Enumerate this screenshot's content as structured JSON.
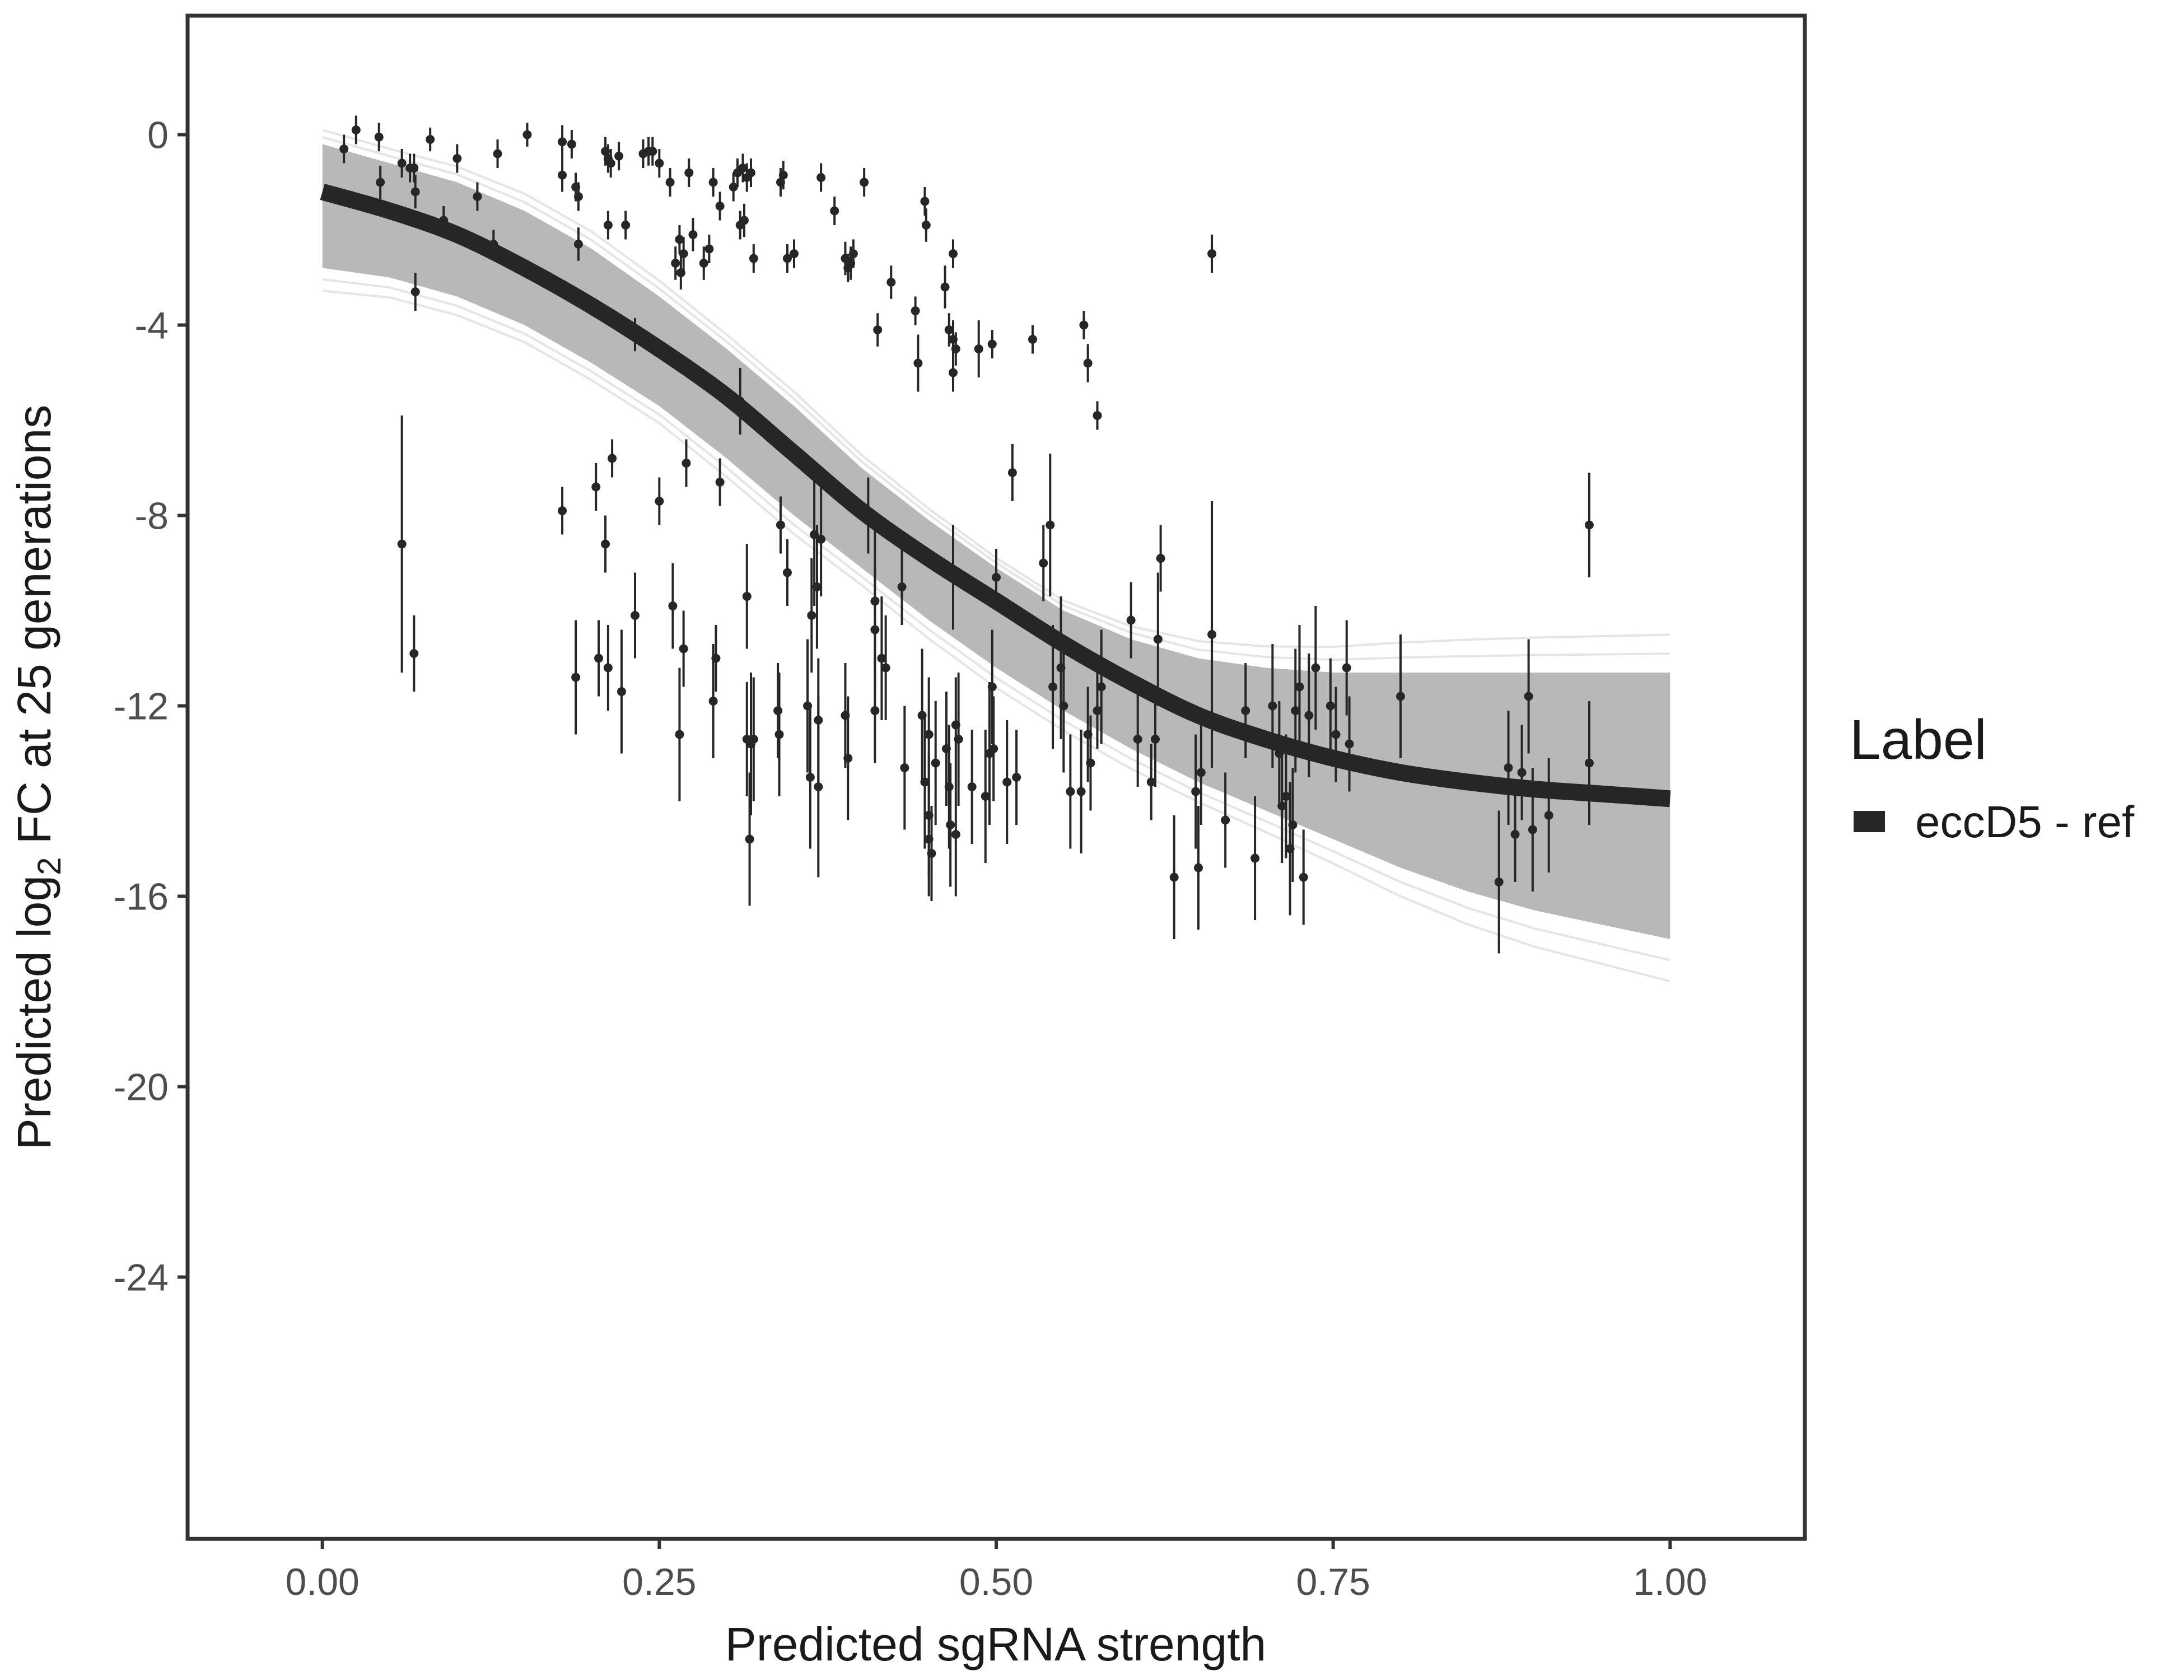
{
  "chart_data": {
    "type": "scatter",
    "xlabel": "Predicted sgRNA strength",
    "ylabel_parts": [
      "Predicted  log",
      "2",
      " FC at 25 generations"
    ],
    "xlim": [
      -0.1,
      1.1
    ],
    "ylim": [
      -29.5,
      2.5
    ],
    "x_ticks": [
      0,
      0.25,
      0.5,
      0.75,
      1
    ],
    "x_tick_labels": [
      "0.00",
      "0.25",
      "0.50",
      "0.75",
      "1.00"
    ],
    "y_ticks": [
      0,
      -4,
      -8,
      -12,
      -16,
      -20,
      -24
    ],
    "y_tick_labels": [
      "0",
      "-4",
      "-8",
      "-12",
      "-16",
      "-20",
      "-24"
    ],
    "grid": false,
    "legend": {
      "title": "Label",
      "position": "right",
      "entries": [
        {
          "name": "eccD5 - ref",
          "color": "#262626"
        }
      ]
    },
    "fit": {
      "name": "eccD5 - ref",
      "x": [
        0,
        0.05,
        0.1,
        0.15,
        0.2,
        0.25,
        0.3,
        0.35,
        0.4,
        0.45,
        0.5,
        0.55,
        0.6,
        0.65,
        0.7,
        0.75,
        0.8,
        0.85,
        0.9,
        0.95,
        1
      ],
      "y": [
        -1.2,
        -1.6,
        -2.1,
        -2.8,
        -3.6,
        -4.5,
        -5.5,
        -6.7,
        -7.9,
        -8.9,
        -9.8,
        -10.7,
        -11.5,
        -12.2,
        -12.7,
        -13.1,
        -13.4,
        -13.6,
        -13.75,
        -13.85,
        -13.95
      ],
      "band_upper": [
        -0.2,
        -0.6,
        -1.0,
        -1.6,
        -2.4,
        -3.4,
        -4.5,
        -5.7,
        -7.0,
        -8.1,
        -9.1,
        -10.0,
        -10.6,
        -11.0,
        -11.2,
        -11.3,
        -11.3,
        -11.3,
        -11.3,
        -11.3,
        -11.3
      ],
      "band_lower": [
        -2.8,
        -3.0,
        -3.4,
        -4.0,
        -4.8,
        -5.7,
        -6.8,
        -8.0,
        -9.1,
        -10.2,
        -11.2,
        -12.1,
        -12.9,
        -13.6,
        -14.2,
        -14.8,
        -15.4,
        -15.9,
        -16.3,
        -16.6,
        -16.9
      ]
    },
    "colors": {
      "points": "#262626",
      "fit_line": "#262626",
      "band": "#a6a6a6",
      "frame": "#333333"
    },
    "points": [
      {
        "x": 0.016,
        "y": -0.3,
        "err": 0.3
      },
      {
        "x": 0.025,
        "y": 0.1,
        "err": 0.3
      },
      {
        "x": 0.042,
        "y": -0.05,
        "err": 0.3
      },
      {
        "x": 0.043,
        "y": -1.0,
        "err": 0.35
      },
      {
        "x": 0.059,
        "y": -0.6,
        "err": 0.3
      },
      {
        "x": 0.065,
        "y": -0.7,
        "err": 0.3
      },
      {
        "x": 0.068,
        "y": -0.7,
        "err": 0.3
      },
      {
        "x": 0.069,
        "y": -1.2,
        "err": 0.35
      },
      {
        "x": 0.069,
        "y": -3.3,
        "err": 0.4
      },
      {
        "x": 0.08,
        "y": -0.1,
        "err": 0.25
      },
      {
        "x": 0.09,
        "y": -1.8,
        "err": 0.3
      },
      {
        "x": 0.1,
        "y": -0.5,
        "err": 0.3
      },
      {
        "x": 0.115,
        "y": -1.3,
        "err": 0.3
      },
      {
        "x": 0.13,
        "y": -0.4,
        "err": 0.3
      },
      {
        "x": 0.127,
        "y": -2.3,
        "err": 0.3
      },
      {
        "x": 0.152,
        "y": 0.0,
        "err": 0.25
      },
      {
        "x": 0.178,
        "y": -0.15,
        "err": 0.35
      },
      {
        "x": 0.178,
        "y": -0.85,
        "err": 0.35
      },
      {
        "x": 0.185,
        "y": -0.2,
        "err": 0.3
      },
      {
        "x": 0.188,
        "y": -1.1,
        "err": 0.3
      },
      {
        "x": 0.19,
        "y": -1.3,
        "err": 0.3
      },
      {
        "x": 0.19,
        "y": -2.3,
        "err": 0.35
      },
      {
        "x": 0.21,
        "y": -0.35,
        "err": 0.3
      },
      {
        "x": 0.212,
        "y": -0.5,
        "err": 0.3
      },
      {
        "x": 0.214,
        "y": -0.6,
        "err": 0.3
      },
      {
        "x": 0.212,
        "y": -1.9,
        "err": 0.3
      },
      {
        "x": 0.22,
        "y": -0.45,
        "err": 0.3
      },
      {
        "x": 0.225,
        "y": -1.9,
        "err": 0.3
      },
      {
        "x": 0.232,
        "y": -4.2,
        "err": 0.35
      },
      {
        "x": 0.238,
        "y": -0.4,
        "err": 0.3
      },
      {
        "x": 0.242,
        "y": -0.35,
        "err": 0.3
      },
      {
        "x": 0.245,
        "y": -0.35,
        "err": 0.3
      },
      {
        "x": 0.25,
        "y": -0.6,
        "err": 0.3
      },
      {
        "x": 0.258,
        "y": -1.0,
        "err": 0.3
      },
      {
        "x": 0.262,
        "y": -2.7,
        "err": 0.35
      },
      {
        "x": 0.265,
        "y": -2.2,
        "err": 0.3
      },
      {
        "x": 0.266,
        "y": -2.9,
        "err": 0.35
      },
      {
        "x": 0.268,
        "y": -2.5,
        "err": 0.35
      },
      {
        "x": 0.272,
        "y": -0.8,
        "err": 0.3
      },
      {
        "x": 0.275,
        "y": -2.1,
        "err": 0.35
      },
      {
        "x": 0.283,
        "y": -2.7,
        "err": 0.35
      },
      {
        "x": 0.287,
        "y": -2.4,
        "err": 0.3
      },
      {
        "x": 0.29,
        "y": -1.0,
        "err": 0.3
      },
      {
        "x": 0.295,
        "y": -1.5,
        "err": 0.3
      },
      {
        "x": 0.305,
        "y": -1.1,
        "err": 0.3
      },
      {
        "x": 0.308,
        "y": -0.8,
        "err": 0.3
      },
      {
        "x": 0.31,
        "y": -1.9,
        "err": 0.3
      },
      {
        "x": 0.312,
        "y": -0.7,
        "err": 0.3
      },
      {
        "x": 0.313,
        "y": -1.8,
        "err": 0.35
      },
      {
        "x": 0.315,
        "y": -0.9,
        "err": 0.3
      },
      {
        "x": 0.318,
        "y": -0.8,
        "err": 0.3
      },
      {
        "x": 0.32,
        "y": -2.6,
        "err": 0.3
      },
      {
        "x": 0.34,
        "y": -1.0,
        "err": 0.3
      },
      {
        "x": 0.342,
        "y": -0.85,
        "err": 0.3
      },
      {
        "x": 0.345,
        "y": -2.6,
        "err": 0.3
      },
      {
        "x": 0.35,
        "y": -2.5,
        "err": 0.3
      },
      {
        "x": 0.37,
        "y": -0.9,
        "err": 0.3
      },
      {
        "x": 0.38,
        "y": -1.6,
        "err": 0.3
      },
      {
        "x": 0.388,
        "y": -2.6,
        "err": 0.35
      },
      {
        "x": 0.39,
        "y": -2.8,
        "err": 0.3
      },
      {
        "x": 0.392,
        "y": -2.7,
        "err": 0.35
      },
      {
        "x": 0.394,
        "y": -2.5,
        "err": 0.3
      },
      {
        "x": 0.402,
        "y": -1.0,
        "err": 0.3
      },
      {
        "x": 0.412,
        "y": -4.1,
        "err": 0.35
      },
      {
        "x": 0.422,
        "y": -3.1,
        "err": 0.35
      },
      {
        "x": 0.44,
        "y": -3.7,
        "err": 0.3
      },
      {
        "x": 0.442,
        "y": -4.8,
        "err": 0.6
      },
      {
        "x": 0.447,
        "y": -1.4,
        "err": 0.3
      },
      {
        "x": 0.448,
        "y": -1.9,
        "err": 0.35
      },
      {
        "x": 0.462,
        "y": -3.2,
        "err": 0.45
      },
      {
        "x": 0.465,
        "y": -4.1,
        "err": 0.35
      },
      {
        "x": 0.468,
        "y": -4.3,
        "err": 0.4
      },
      {
        "x": 0.468,
        "y": -5.0,
        "err": 0.4
      },
      {
        "x": 0.47,
        "y": -4.5,
        "err": 0.35
      },
      {
        "x": 0.468,
        "y": -2.5,
        "err": 0.3
      },
      {
        "x": 0.487,
        "y": -4.5,
        "err": 0.6
      },
      {
        "x": 0.497,
        "y": -4.4,
        "err": 0.3
      },
      {
        "x": 0.527,
        "y": -4.3,
        "err": 0.3
      },
      {
        "x": 0.565,
        "y": -4.0,
        "err": 0.3
      },
      {
        "x": 0.568,
        "y": -4.8,
        "err": 0.4
      },
      {
        "x": 0.575,
        "y": -5.9,
        "err": 0.3
      },
      {
        "x": 0.66,
        "y": -2.5,
        "err": 0.4
      },
      {
        "x": 0.059,
        "y": -8.6,
        "err": 2.7
      },
      {
        "x": 0.068,
        "y": -10.9,
        "err": 0.8
      },
      {
        "x": 0.178,
        "y": -7.9,
        "err": 0.5
      },
      {
        "x": 0.188,
        "y": -11.4,
        "err": 1.2
      },
      {
        "x": 0.203,
        "y": -7.4,
        "err": 0.5
      },
      {
        "x": 0.205,
        "y": -11.0,
        "err": 0.8
      },
      {
        "x": 0.21,
        "y": -8.6,
        "err": 0.6
      },
      {
        "x": 0.212,
        "y": -11.2,
        "err": 0.9
      },
      {
        "x": 0.215,
        "y": -6.8,
        "err": 0.4
      },
      {
        "x": 0.222,
        "y": -11.7,
        "err": 1.3
      },
      {
        "x": 0.232,
        "y": -10.1,
        "err": 0.9
      },
      {
        "x": 0.25,
        "y": -7.7,
        "err": 0.5
      },
      {
        "x": 0.26,
        "y": -9.9,
        "err": 0.9
      },
      {
        "x": 0.265,
        "y": -12.6,
        "err": 1.4
      },
      {
        "x": 0.268,
        "y": -10.8,
        "err": 0.8
      },
      {
        "x": 0.27,
        "y": -6.9,
        "err": 0.5
      },
      {
        "x": 0.29,
        "y": -11.9,
        "err": 1.2
      },
      {
        "x": 0.292,
        "y": -11.0,
        "err": 0.7
      },
      {
        "x": 0.295,
        "y": -7.3,
        "err": 0.5
      },
      {
        "x": 0.31,
        "y": -5.6,
        "err": 0.7
      },
      {
        "x": 0.315,
        "y": -9.7,
        "err": 1.1
      },
      {
        "x": 0.315,
        "y": -12.7,
        "err": 1.2
      },
      {
        "x": 0.317,
        "y": -14.8,
        "err": 1.4
      },
      {
        "x": 0.318,
        "y": -12.8,
        "err": 1.5
      },
      {
        "x": 0.32,
        "y": -12.7,
        "err": 1.3
      },
      {
        "x": 0.338,
        "y": -12.1,
        "err": 1.0
      },
      {
        "x": 0.339,
        "y": -12.6,
        "err": 1.3
      },
      {
        "x": 0.34,
        "y": -8.2,
        "err": 0.6
      },
      {
        "x": 0.345,
        "y": -9.2,
        "err": 0.7
      },
      {
        "x": 0.36,
        "y": -12.0,
        "err": 1.4
      },
      {
        "x": 0.362,
        "y": -13.5,
        "err": 1.5
      },
      {
        "x": 0.363,
        "y": -10.1,
        "err": 1.2
      },
      {
        "x": 0.365,
        "y": -8.4,
        "err": 1.5
      },
      {
        "x": 0.367,
        "y": -9.5,
        "err": 1.3
      },
      {
        "x": 0.368,
        "y": -12.3,
        "err": 1.3
      },
      {
        "x": 0.368,
        "y": -13.7,
        "err": 1.9
      },
      {
        "x": 0.37,
        "y": -8.5,
        "err": 1.2
      },
      {
        "x": 0.388,
        "y": -12.2,
        "err": 1.1
      },
      {
        "x": 0.39,
        "y": -13.1,
        "err": 1.3
      },
      {
        "x": 0.405,
        "y": -8.0,
        "err": 0.8
      },
      {
        "x": 0.41,
        "y": -12.1,
        "err": 1.1
      },
      {
        "x": 0.41,
        "y": -9.8,
        "err": 1.5
      },
      {
        "x": 0.41,
        "y": -10.4,
        "err": 1.3
      },
      {
        "x": 0.415,
        "y": -11.0,
        "err": 1.3
      },
      {
        "x": 0.418,
        "y": -11.2,
        "err": 1.1
      },
      {
        "x": 0.43,
        "y": -9.5,
        "err": 0.8
      },
      {
        "x": 0.432,
        "y": -13.3,
        "err": 1.3
      },
      {
        "x": 0.445,
        "y": -12.2,
        "err": 1.4
      },
      {
        "x": 0.447,
        "y": -13.6,
        "err": 1.4
      },
      {
        "x": 0.45,
        "y": -14.3,
        "err": 1.3
      },
      {
        "x": 0.45,
        "y": -12.6,
        "err": 1.2
      },
      {
        "x": 0.45,
        "y": -14.8,
        "err": 1.2
      },
      {
        "x": 0.452,
        "y": -15.1,
        "err": 1.0
      },
      {
        "x": 0.455,
        "y": -13.2,
        "err": 1.3
      },
      {
        "x": 0.463,
        "y": -12.9,
        "err": 1.2
      },
      {
        "x": 0.465,
        "y": -13.7,
        "err": 1.3
      },
      {
        "x": 0.466,
        "y": -14.5,
        "err": 1.3
      },
      {
        "x": 0.468,
        "y": -9.3,
        "err": 1.1
      },
      {
        "x": 0.47,
        "y": -12.4,
        "err": 1.0
      },
      {
        "x": 0.47,
        "y": -14.7,
        "err": 1.3
      },
      {
        "x": 0.472,
        "y": -12.7,
        "err": 1.4
      },
      {
        "x": 0.482,
        "y": -13.7,
        "err": 1.2
      },
      {
        "x": 0.492,
        "y": -13.9,
        "err": 1.4
      },
      {
        "x": 0.495,
        "y": -13.0,
        "err": 1.5
      },
      {
        "x": 0.497,
        "y": -11.6,
        "err": 1.2
      },
      {
        "x": 0.498,
        "y": -12.9,
        "err": 1.1
      },
      {
        "x": 0.5,
        "y": -9.3,
        "err": 0.6
      },
      {
        "x": 0.508,
        "y": -13.6,
        "err": 1.3
      },
      {
        "x": 0.512,
        "y": -7.1,
        "err": 0.6
      },
      {
        "x": 0.515,
        "y": -13.5,
        "err": 1.0
      },
      {
        "x": 0.535,
        "y": -9.0,
        "err": 0.8
      },
      {
        "x": 0.54,
        "y": -8.2,
        "err": 1.5
      },
      {
        "x": 0.542,
        "y": -11.6,
        "err": 1.3
      },
      {
        "x": 0.548,
        "y": -11.2,
        "err": 1.5
      },
      {
        "x": 0.55,
        "y": -12.0,
        "err": 1.4
      },
      {
        "x": 0.555,
        "y": -13.8,
        "err": 1.2
      },
      {
        "x": 0.563,
        "y": -13.8,
        "err": 1.3
      },
      {
        "x": 0.568,
        "y": -12.6,
        "err": 1.0
      },
      {
        "x": 0.57,
        "y": -13.2,
        "err": 1.0
      },
      {
        "x": 0.575,
        "y": -12.1,
        "err": 0.8
      },
      {
        "x": 0.578,
        "y": -11.6,
        "err": 1.2
      },
      {
        "x": 0.6,
        "y": -10.2,
        "err": 0.8
      },
      {
        "x": 0.605,
        "y": -12.7,
        "err": 1.0
      },
      {
        "x": 0.615,
        "y": -13.6,
        "err": 0.8
      },
      {
        "x": 0.618,
        "y": -12.7,
        "err": 1.0
      },
      {
        "x": 0.62,
        "y": -10.6,
        "err": 1.4
      },
      {
        "x": 0.622,
        "y": -8.9,
        "err": 0.7
      },
      {
        "x": 0.632,
        "y": -15.6,
        "err": 1.3
      },
      {
        "x": 0.648,
        "y": -13.8,
        "err": 1.2
      },
      {
        "x": 0.65,
        "y": -15.4,
        "err": 1.3
      },
      {
        "x": 0.652,
        "y": -13.4,
        "err": 1.1
      },
      {
        "x": 0.66,
        "y": -10.5,
        "err": 2.8
      },
      {
        "x": 0.67,
        "y": -14.4,
        "err": 1.0
      },
      {
        "x": 0.685,
        "y": -12.1,
        "err": 1.0
      },
      {
        "x": 0.692,
        "y": -15.2,
        "err": 1.3
      },
      {
        "x": 0.705,
        "y": -12.0,
        "err": 1.3
      },
      {
        "x": 0.71,
        "y": -13.0,
        "err": 1.1
      },
      {
        "x": 0.712,
        "y": -14.1,
        "err": 1.2
      },
      {
        "x": 0.715,
        "y": -13.9,
        "err": 1.3
      },
      {
        "x": 0.718,
        "y": -15.0,
        "err": 1.4
      },
      {
        "x": 0.72,
        "y": -14.5,
        "err": 1.2
      },
      {
        "x": 0.722,
        "y": -12.1,
        "err": 1.3
      },
      {
        "x": 0.725,
        "y": -11.6,
        "err": 1.3
      },
      {
        "x": 0.728,
        "y": -15.6,
        "err": 1.0
      },
      {
        "x": 0.732,
        "y": -12.2,
        "err": 1.3
      },
      {
        "x": 0.737,
        "y": -11.2,
        "err": 1.3
      },
      {
        "x": 0.748,
        "y": -12.0,
        "err": 1.0
      },
      {
        "x": 0.752,
        "y": -12.6,
        "err": 1.0
      },
      {
        "x": 0.76,
        "y": -11.2,
        "err": 1.0
      },
      {
        "x": 0.762,
        "y": -12.8,
        "err": 1.0
      },
      {
        "x": 0.8,
        "y": -11.8,
        "err": 1.3
      },
      {
        "x": 0.873,
        "y": -15.7,
        "err": 1.5
      },
      {
        "x": 0.88,
        "y": -13.3,
        "err": 1.2
      },
      {
        "x": 0.885,
        "y": -14.7,
        "err": 1.0
      },
      {
        "x": 0.89,
        "y": -13.4,
        "err": 1.0
      },
      {
        "x": 0.895,
        "y": -11.8,
        "err": 1.2
      },
      {
        "x": 0.898,
        "y": -14.6,
        "err": 1.3
      },
      {
        "x": 0.91,
        "y": -14.3,
        "err": 1.2
      },
      {
        "x": 0.94,
        "y": -13.2,
        "err": 1.3
      },
      {
        "x": 0.94,
        "y": -8.2,
        "err": 1.1
      }
    ]
  }
}
